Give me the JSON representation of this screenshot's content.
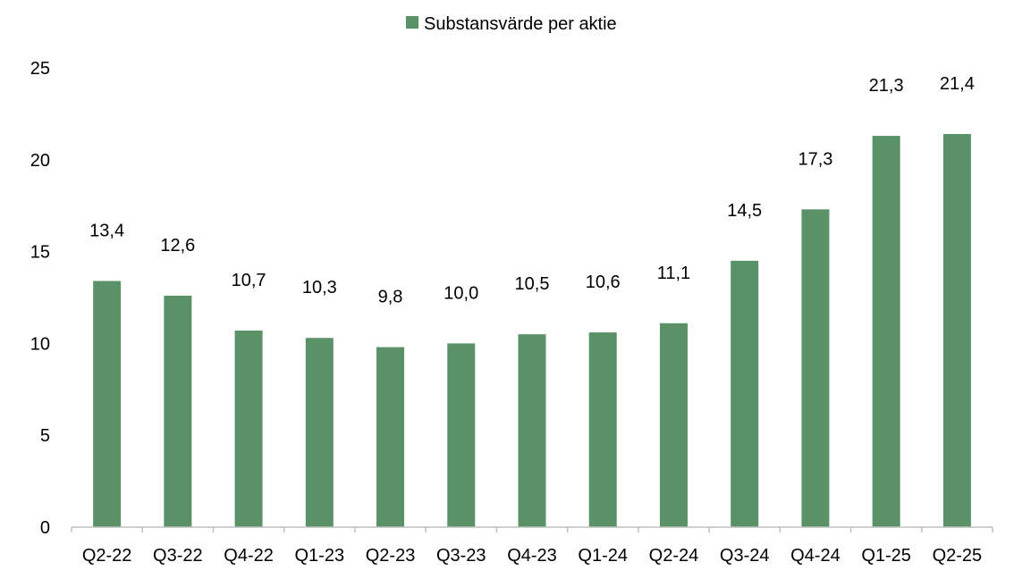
{
  "chart_data": {
    "type": "bar",
    "categories": [
      "Q2-22",
      "Q3-22",
      "Q4-22",
      "Q1-23",
      "Q2-23",
      "Q3-23",
      "Q4-23",
      "Q1-24",
      "Q2-24",
      "Q3-24",
      "Q4-24",
      "Q1-25",
      "Q2-25"
    ],
    "series": [
      {
        "name": "Substansvärde per aktie",
        "values": [
          13.4,
          12.6,
          10.7,
          10.3,
          9.8,
          10.0,
          10.5,
          10.6,
          11.1,
          14.5,
          17.3,
          21.3,
          21.4
        ],
        "labels": [
          "13,4",
          "12,6",
          "10,7",
          "10,3",
          "9,8",
          "10,0",
          "10,5",
          "10,6",
          "11,1",
          "14,5",
          "17,3",
          "21,3",
          "21,4"
        ],
        "color": "#5a9167"
      }
    ],
    "ylim": [
      0,
      25
    ],
    "yticks": [
      0,
      5,
      10,
      15,
      20,
      25
    ],
    "grid": false,
    "legend_position": "top-center"
  }
}
